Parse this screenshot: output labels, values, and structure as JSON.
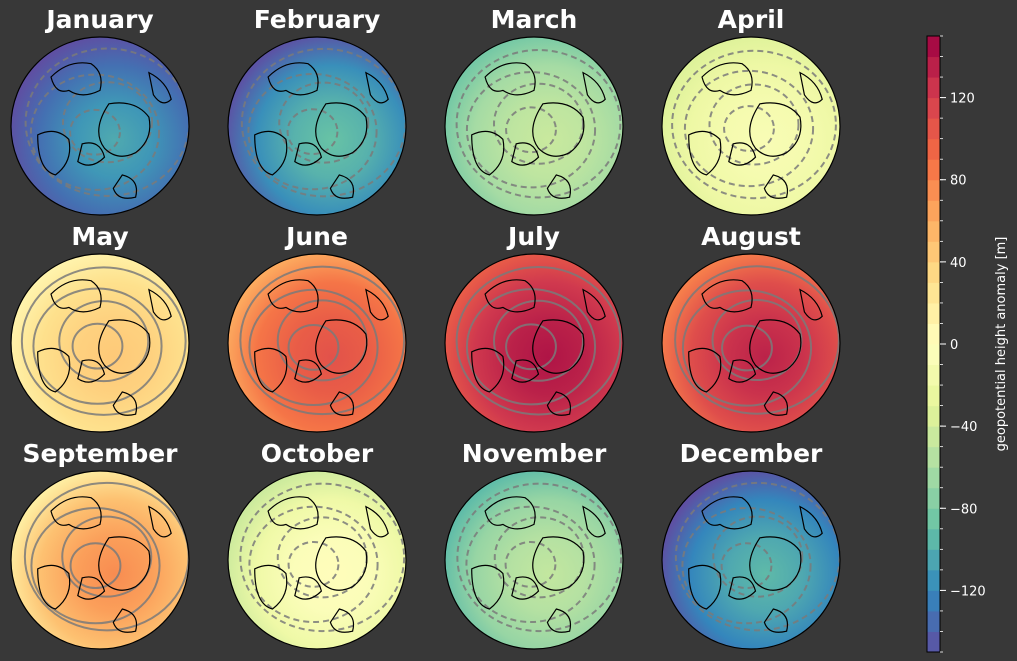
{
  "months": [
    {
      "title": "January",
      "anomaly": -120,
      "spread": 50
    },
    {
      "title": "February",
      "anomaly": -105,
      "spread": 45
    },
    {
      "title": "March",
      "anomaly": -55,
      "spread": 30
    },
    {
      "title": "April",
      "anomaly": -15,
      "spread": 20
    },
    {
      "title": "May",
      "anomaly": 35,
      "spread": 25
    },
    {
      "title": "June",
      "anomaly": 95,
      "spread": 35
    },
    {
      "title": "July",
      "anomaly": 130,
      "spread": 30
    },
    {
      "title": "August",
      "anomaly": 120,
      "spread": 40
    },
    {
      "title": "September",
      "anomaly": 60,
      "spread": 45
    },
    {
      "title": "October",
      "anomaly": -10,
      "spread": 35
    },
    {
      "title": "November",
      "anomaly": -60,
      "spread": 35
    },
    {
      "title": "December",
      "anomaly": -110,
      "spread": 45
    }
  ],
  "colorbar": {
    "label": "geopotential height anomaly [m]",
    "min": -150,
    "max": 150,
    "step": 10,
    "ticks": [
      120,
      80,
      40,
      0,
      -40,
      -80,
      -120
    ],
    "tick_labels": [
      "120",
      "80",
      "40",
      "0",
      "−40",
      "−80",
      "−120"
    ],
    "colors": [
      "#5e4fa2",
      "#3288bd",
      "#66c2a5",
      "#abdda4",
      "#e6f598",
      "#ffffbf",
      "#fee08b",
      "#fdae61",
      "#f46d43",
      "#d53e4f",
      "#9e0142"
    ]
  }
}
